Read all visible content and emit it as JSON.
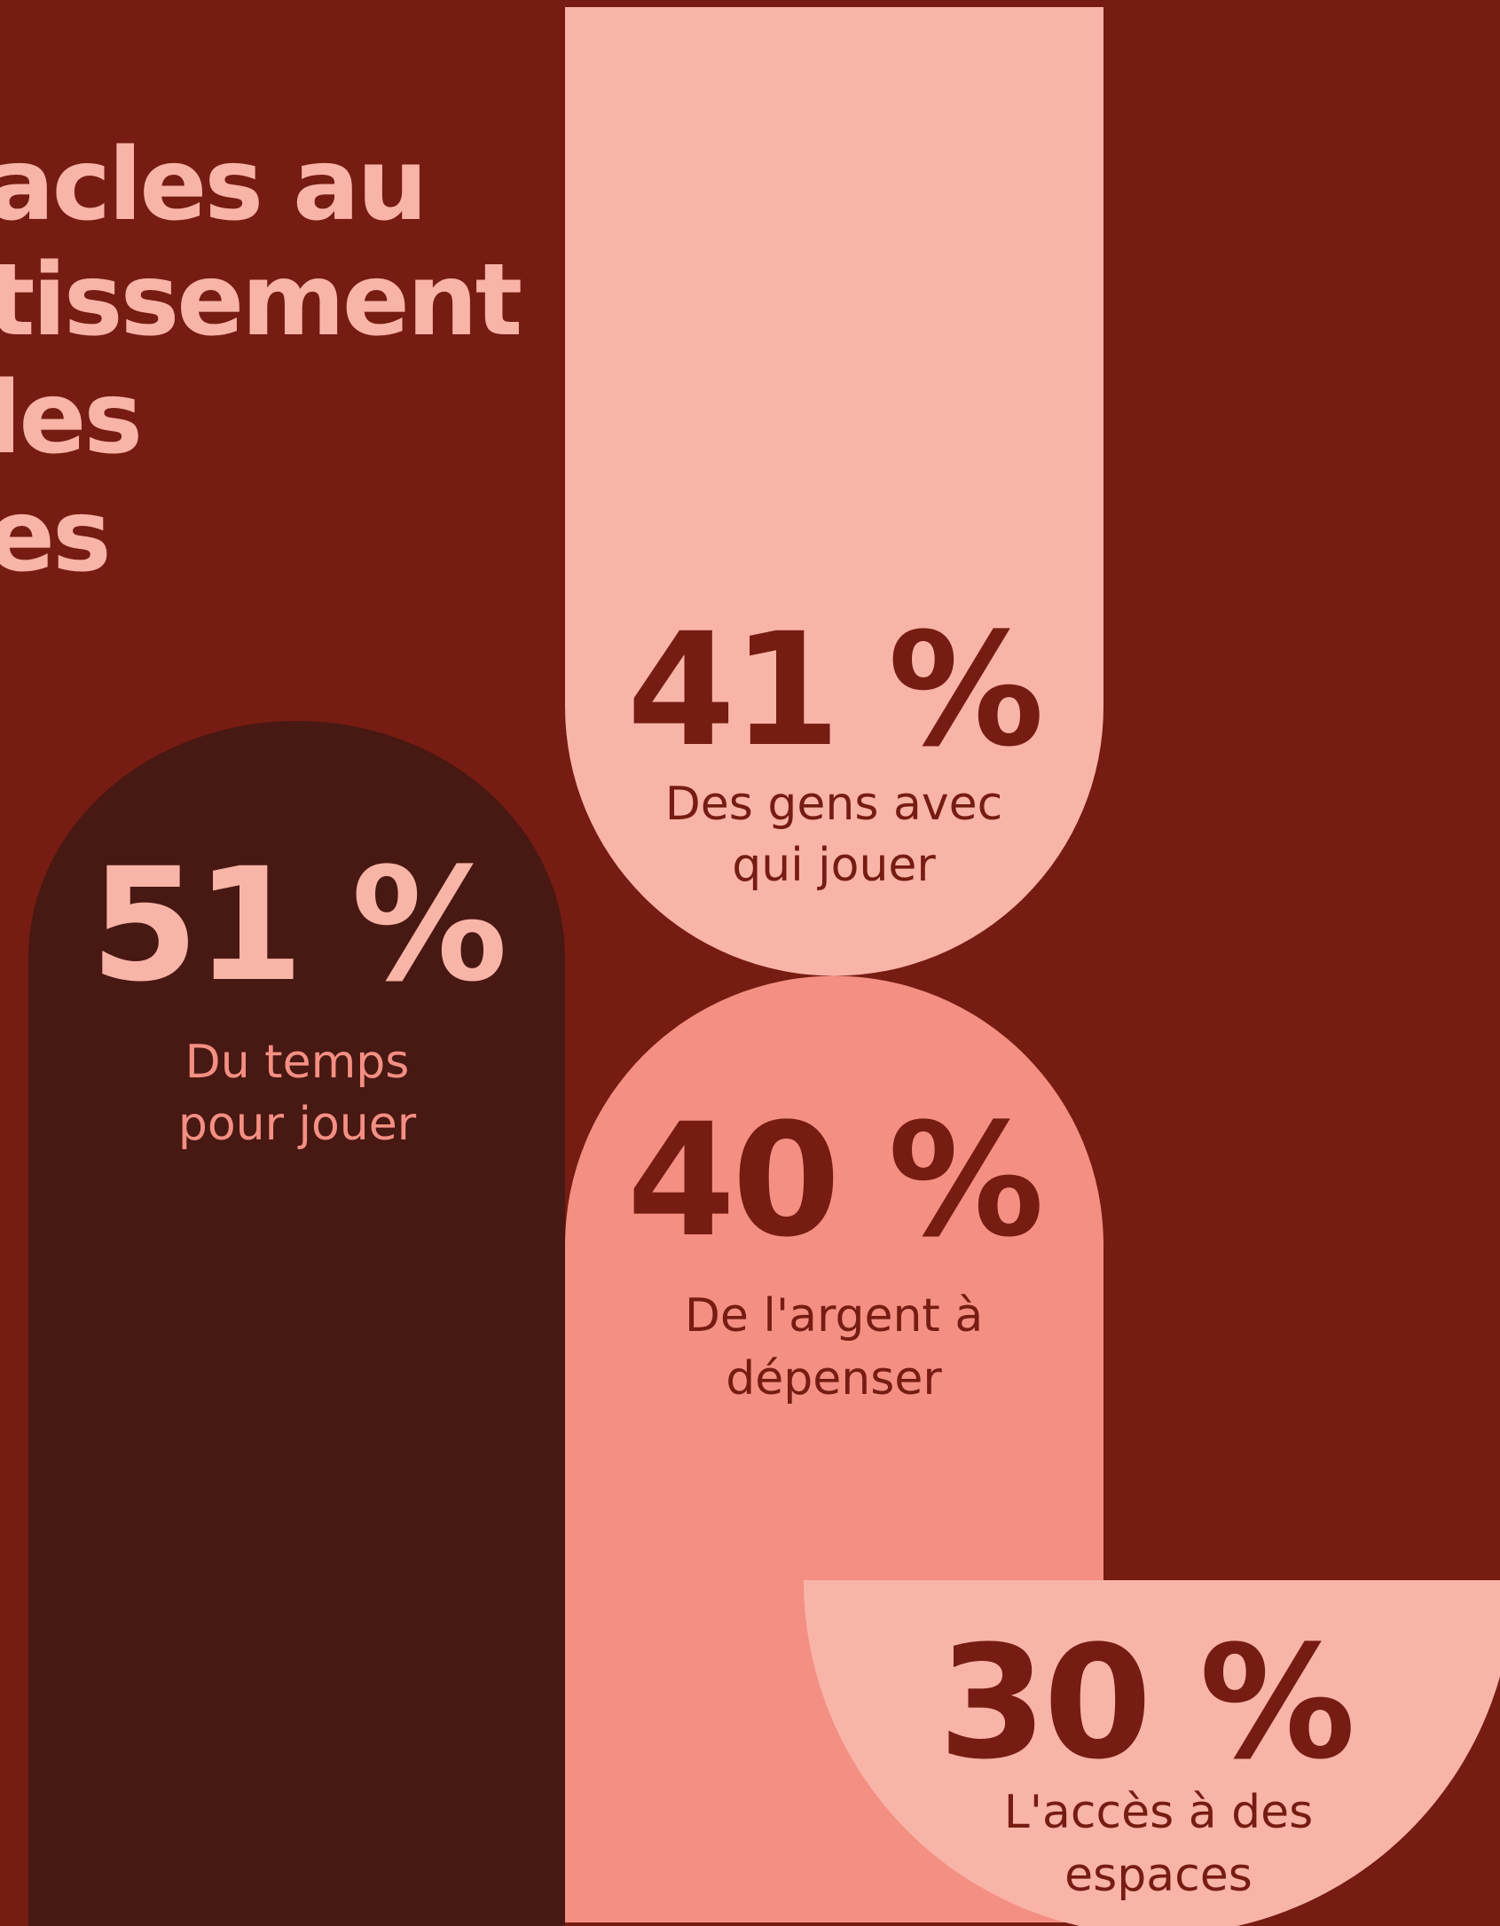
{
  "header": {
    "title_lines": [
      "acles au",
      "tissement",
      "les",
      "es"
    ]
  },
  "stats": [
    {
      "value": "51 %",
      "label_lines": [
        "Du temps",
        "pour jouer"
      ]
    },
    {
      "value": "41 %",
      "label_lines": [
        "Des gens avec",
        "qui jouer"
      ]
    },
    {
      "value": "40 %",
      "label_lines": [
        "De l'argent à",
        "dépenser"
      ]
    },
    {
      "value": "30 %",
      "label_lines": [
        "L'accès à des",
        "espaces"
      ]
    }
  ]
}
